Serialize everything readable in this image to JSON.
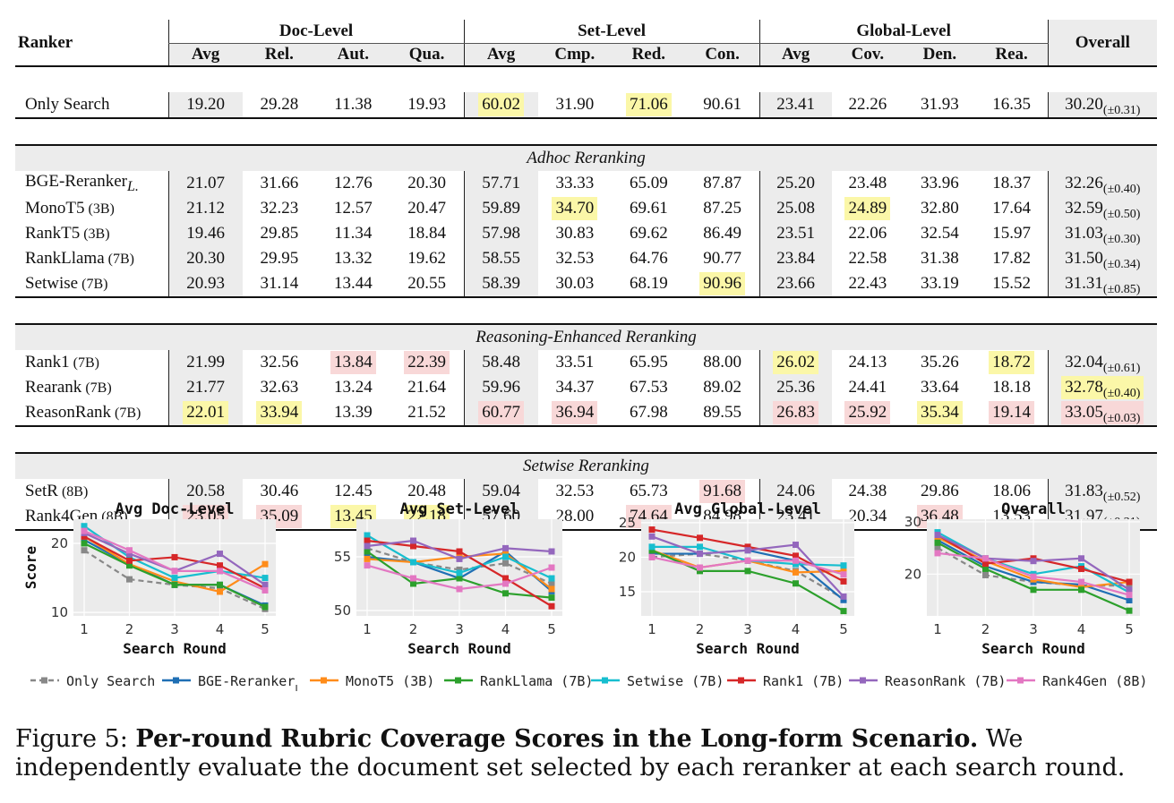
{
  "table": {
    "ranker_header": "Ranker",
    "overall_header": "Overall",
    "levels": [
      "Doc-Level",
      "Set-Level",
      "Global-Level"
    ],
    "subheaders": [
      "Avg",
      "Rel.",
      "Aut.",
      "Qua.",
      "Avg",
      "Cmp.",
      "Red.",
      "Con.",
      "Avg",
      "Cov.",
      "Den.",
      "Rea."
    ],
    "groups": [
      {
        "section": "",
        "rows": [
          {
            "name": "Only Search",
            "suffix": "",
            "values": [
              "19.20",
              "29.28",
              "11.38",
              "19.93",
              "60.02",
              "31.90",
              "71.06",
              "90.61",
              "23.41",
              "22.26",
              "31.93",
              "16.35"
            ],
            "hl": [
              "",
              "",
              "",
              "",
              "y",
              "",
              "y",
              "",
              "",
              "",
              "",
              ""
            ],
            "overall": "30.20",
            "pm": "(±0.31)",
            "ohl": ""
          }
        ]
      },
      {
        "section": "Adhoc Reranking",
        "rows": [
          {
            "name": "BGE-Reranker",
            "suffix": "L.",
            "values": [
              "21.07",
              "31.66",
              "12.76",
              "20.30",
              "57.71",
              "33.33",
              "65.09",
              "87.87",
              "25.20",
              "23.48",
              "33.96",
              "18.37"
            ],
            "hl": [
              "",
              "",
              "",
              "",
              "",
              "",
              "",
              "",
              "",
              "",
              "",
              ""
            ],
            "overall": "32.26",
            "pm": "(±0.40)",
            "ohl": ""
          },
          {
            "name": "MonoT5",
            "suffix": "(3B)",
            "values": [
              "21.12",
              "32.23",
              "12.57",
              "20.47",
              "59.89",
              "34.70",
              "69.61",
              "87.25",
              "25.08",
              "24.89",
              "32.80",
              "17.64"
            ],
            "hl": [
              "",
              "",
              "",
              "",
              "",
              "y",
              "",
              "",
              "",
              "y",
              "",
              ""
            ],
            "overall": "32.59",
            "pm": "(±0.50)",
            "ohl": ""
          },
          {
            "name": "RankT5",
            "suffix": "(3B)",
            "values": [
              "19.46",
              "29.85",
              "11.34",
              "18.84",
              "57.98",
              "30.83",
              "69.62",
              "86.49",
              "23.51",
              "22.06",
              "32.54",
              "15.97"
            ],
            "hl": [
              "",
              "",
              "",
              "",
              "",
              "",
              "",
              "",
              "",
              "",
              "",
              ""
            ],
            "overall": "31.03",
            "pm": "(±0.30)",
            "ohl": ""
          },
          {
            "name": "RankLlama",
            "suffix": "(7B)",
            "values": [
              "20.30",
              "29.95",
              "13.32",
              "19.62",
              "58.55",
              "32.53",
              "64.76",
              "90.77",
              "23.84",
              "22.58",
              "31.38",
              "17.82"
            ],
            "hl": [
              "",
              "",
              "",
              "",
              "",
              "",
              "",
              "",
              "",
              "",
              "",
              ""
            ],
            "overall": "31.50",
            "pm": "(±0.34)",
            "ohl": ""
          },
          {
            "name": "Setwise",
            "suffix": "(7B)",
            "values": [
              "20.93",
              "31.14",
              "13.44",
              "20.55",
              "58.39",
              "30.03",
              "68.19",
              "90.96",
              "23.66",
              "22.43",
              "33.19",
              "15.52"
            ],
            "hl": [
              "",
              "",
              "",
              "",
              "",
              "",
              "",
              "y",
              "",
              "",
              "",
              ""
            ],
            "overall": "31.31",
            "pm": "(±0.85)",
            "ohl": ""
          }
        ]
      },
      {
        "section": "Reasoning-Enhanced Reranking",
        "rows": [
          {
            "name": "Rank1",
            "suffix": "(7B)",
            "values": [
              "21.99",
              "32.56",
              "13.84",
              "22.39",
              "58.48",
              "33.51",
              "65.95",
              "88.00",
              "26.02",
              "24.13",
              "35.26",
              "18.72"
            ],
            "hl": [
              "",
              "",
              "p",
              "p",
              "",
              "",
              "",
              "",
              "y",
              "",
              "",
              "y"
            ],
            "overall": "32.04",
            "pm": "(±0.61)",
            "ohl": ""
          },
          {
            "name": "Rearank",
            "suffix": "(7B)",
            "values": [
              "21.77",
              "32.63",
              "13.24",
              "21.64",
              "59.96",
              "34.37",
              "67.53",
              "89.02",
              "25.36",
              "24.41",
              "33.64",
              "18.18"
            ],
            "hl": [
              "",
              "",
              "",
              "",
              "",
              "",
              "",
              "",
              "",
              "",
              "",
              ""
            ],
            "overall": "32.78",
            "pm": "(±0.40)",
            "ohl": "y"
          },
          {
            "name": "ReasonRank",
            "suffix": "(7B)",
            "values": [
              "22.01",
              "33.94",
              "13.39",
              "21.52",
              "60.77",
              "36.94",
              "67.98",
              "89.55",
              "26.83",
              "25.92",
              "35.34",
              "19.14"
            ],
            "hl": [
              "y",
              "y",
              "",
              "",
              "p",
              "p",
              "",
              "",
              "p",
              "p",
              "y",
              "p"
            ],
            "overall": "33.05",
            "pm": "(±0.03)",
            "ohl": "p"
          }
        ]
      },
      {
        "section": "Setwise Reranking",
        "rows": [
          {
            "name": "SetR",
            "suffix": "(8B)",
            "values": [
              "20.58",
              "30.46",
              "12.45",
              "20.48",
              "59.04",
              "32.53",
              "65.73",
              "91.68",
              "24.06",
              "24.38",
              "29.86",
              "18.06"
            ],
            "hl": [
              "",
              "",
              "",
              "",
              "",
              "",
              "",
              "p",
              "",
              "",
              "",
              ""
            ],
            "overall": "31.83",
            "pm": "(±0.52)",
            "ohl": ""
          },
          {
            "name": "Rank4Gen",
            "suffix": "(8B)",
            "values": [
              "23.05",
              "35.09",
              "13.45",
              "22.18",
              "57.60",
              "28.00",
              "74.64",
              "84.98",
              "23.41",
              "20.34",
              "36.48",
              "13.53"
            ],
            "hl": [
              "p",
              "p",
              "y",
              "y",
              "",
              "",
              "p",
              "",
              "",
              "",
              "p",
              ""
            ],
            "overall": "31.97",
            "pm": "(±0.21)",
            "ohl": ""
          }
        ]
      }
    ]
  },
  "chart_data": [
    {
      "type": "line",
      "title": "Avg Doc-Level",
      "xlabel": "Search Round",
      "ylabel": "Score",
      "x": [
        1,
        2,
        3,
        4,
        5
      ],
      "ylim": [
        9.5,
        23.5
      ],
      "yticks": [
        10,
        20
      ],
      "series": [
        {
          "name": "Only Search",
          "values": [
            19.0,
            14.8,
            14.0,
            13.5,
            10.5
          ]
        },
        {
          "name": "BGE-RerankerL",
          "values": [
            20.5,
            17.0,
            14.0,
            14.0,
            11.0
          ]
        },
        {
          "name": "MonoT5 (3B)",
          "values": [
            21.0,
            17.0,
            14.5,
            13.0,
            17.0
          ]
        },
        {
          "name": "RankLlama (7B)",
          "values": [
            20.0,
            16.8,
            14.0,
            14.0,
            10.8
          ]
        },
        {
          "name": "Setwise (7B)",
          "values": [
            22.5,
            18.0,
            15.0,
            16.0,
            15.0
          ]
        },
        {
          "name": "Rank1 (7B)",
          "values": [
            21.0,
            17.5,
            18.0,
            16.8,
            13.5
          ]
        },
        {
          "name": "ReasonRank (7B)",
          "values": [
            21.5,
            18.5,
            16.0,
            18.5,
            14.0
          ]
        },
        {
          "name": "Rank4Gen (8B)",
          "values": [
            21.8,
            19.0,
            16.0,
            16.0,
            13.2
          ]
        }
      ]
    },
    {
      "type": "line",
      "title": "Avg Set-Level",
      "xlabel": "Search Round",
      "ylabel": "",
      "x": [
        1,
        2,
        3,
        4,
        5
      ],
      "ylim": [
        49.5,
        58.5
      ],
      "yticks": [
        50,
        55
      ],
      "series": [
        {
          "name": "Only Search",
          "values": [
            55.8,
            54.5,
            53.8,
            54.4,
            52.5
          ]
        },
        {
          "name": "BGE-RerankerL",
          "values": [
            55.0,
            54.5,
            53.0,
            55.5,
            51.8
          ]
        },
        {
          "name": "MonoT5 (3B)",
          "values": [
            54.8,
            54.5,
            55.0,
            55.3,
            52.0
          ]
        },
        {
          "name": "RankLlama (7B)",
          "values": [
            55.5,
            52.5,
            53.0,
            51.6,
            51.2
          ]
        },
        {
          "name": "Setwise (7B)",
          "values": [
            57.0,
            54.5,
            53.5,
            55.0,
            53.0
          ]
        },
        {
          "name": "Rank1 (7B)",
          "values": [
            56.5,
            56.0,
            55.5,
            53.0,
            50.4
          ]
        },
        {
          "name": "ReasonRank (7B)",
          "values": [
            56.0,
            56.5,
            54.8,
            55.8,
            55.5
          ]
        },
        {
          "name": "Rank4Gen (8B)",
          "values": [
            54.2,
            53.0,
            52.0,
            52.5,
            54.0
          ]
        }
      ]
    },
    {
      "type": "line",
      "title": "Avg Global-Level",
      "xlabel": "Search Round",
      "ylabel": "",
      "x": [
        1,
        2,
        3,
        4,
        5
      ],
      "ylim": [
        11.5,
        25.5
      ],
      "yticks": [
        15,
        20,
        25
      ],
      "series": [
        {
          "name": "Only Search",
          "values": [
            20.0,
            20.5,
            19.5,
            18.0,
            14.0
          ]
        },
        {
          "name": "BGE-RerankerL",
          "values": [
            20.5,
            20.5,
            21.0,
            19.5,
            13.8
          ]
        },
        {
          "name": "MonoT5 (3B)",
          "values": [
            21.0,
            18.5,
            19.5,
            17.8,
            18.0
          ]
        },
        {
          "name": "RankLlama (7B)",
          "values": [
            21.0,
            18.0,
            18.0,
            16.2,
            12.2
          ]
        },
        {
          "name": "Setwise (7B)",
          "values": [
            21.5,
            21.5,
            19.5,
            19.0,
            18.8
          ]
        },
        {
          "name": "Rank1 (7B)",
          "values": [
            24.0,
            22.8,
            21.5,
            20.2,
            16.5
          ]
        },
        {
          "name": "ReasonRank (7B)",
          "values": [
            23.0,
            20.5,
            21.0,
            21.8,
            14.3
          ]
        },
        {
          "name": "Rank4Gen (8B)",
          "values": [
            20.0,
            18.5,
            19.5,
            19.5,
            17.5
          ]
        }
      ]
    },
    {
      "type": "line",
      "title": "Overall",
      "xlabel": "Search Round",
      "ylabel": "",
      "x": [
        1,
        2,
        3,
        4,
        5
      ],
      "ylim": [
        12.0,
        30.5
      ],
      "yticks": [
        20,
        30
      ],
      "series": [
        {
          "name": "Only Search",
          "values": [
            25.0,
            19.8,
            18.5,
            17.8,
            17.8
          ]
        },
        {
          "name": "BGE-RerankerL",
          "values": [
            26.5,
            21.5,
            18.5,
            18.0,
            15.0
          ]
        },
        {
          "name": "MonoT5 (3B)",
          "values": [
            27.0,
            22.5,
            19.0,
            17.5,
            18.5
          ]
        },
        {
          "name": "RankLlama (7B)",
          "values": [
            26.0,
            21.0,
            17.0,
            17.0,
            13.0
          ]
        },
        {
          "name": "Setwise (7B)",
          "values": [
            28.0,
            23.0,
            20.0,
            21.5,
            16.5
          ]
        },
        {
          "name": "Rank1 (7B)",
          "values": [
            27.5,
            22.0,
            23.0,
            21.0,
            18.5
          ]
        },
        {
          "name": "ReasonRank (7B)",
          "values": [
            27.5,
            23.0,
            22.5,
            23.0,
            17.0
          ]
        },
        {
          "name": "Rank4Gen (8B)",
          "values": [
            24.0,
            23.0,
            19.5,
            18.5,
            16.0
          ]
        }
      ]
    }
  ],
  "legend": [
    {
      "name": "Only Search",
      "sub": "",
      "color": "#888888",
      "dashed": true
    },
    {
      "name": "BGE-Reranker",
      "sub": "L",
      "color": "#1f6fb4",
      "dashed": false
    },
    {
      "name": "MonoT5 (3B)",
      "sub": "",
      "color": "#ff8c1a",
      "dashed": false
    },
    {
      "name": "RankLlama (7B)",
      "sub": "",
      "color": "#2ca02c",
      "dashed": false
    },
    {
      "name": "Setwise (7B)",
      "sub": "",
      "color": "#17becf",
      "dashed": false
    },
    {
      "name": "Rank1 (7B)",
      "sub": "",
      "color": "#d62728",
      "dashed": false
    },
    {
      "name": "ReasonRank (7B)",
      "sub": "",
      "color": "#9467bd",
      "dashed": false
    },
    {
      "name": "Rank4Gen (8B)",
      "sub": "",
      "color": "#e377c2",
      "dashed": false
    }
  ],
  "caption": {
    "label": "Figure 5:",
    "bold": "Per-round Rubric Coverage Scores in the Long-form Scenario.",
    "text": "We independently evaluate the document set selected by each reranker at each search round."
  }
}
